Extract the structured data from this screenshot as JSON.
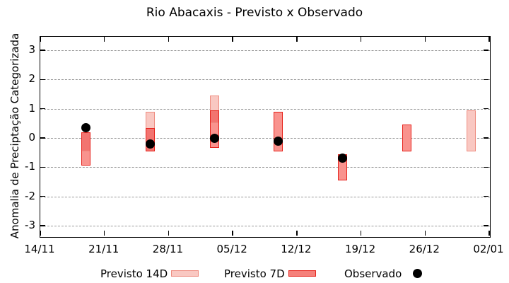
{
  "title": "Rio Abacaxis - Previsto x Observado",
  "y_axis": {
    "label": "Anomalia de Preciptação Categorizada",
    "ticks": [
      3,
      2,
      1,
      0,
      -1,
      -2,
      -3
    ],
    "range": [
      -3.4,
      3.4
    ]
  },
  "x_axis": {
    "tick_labels": [
      "14/11",
      "21/11",
      "28/11",
      "05/12",
      "12/12",
      "19/12",
      "26/12",
      "02/01"
    ],
    "tick_days": [
      0,
      7,
      14,
      21,
      28,
      35,
      42,
      49
    ],
    "span_days": 49
  },
  "legend": {
    "items": [
      {
        "label": "Previsto 14D",
        "type": "box",
        "fill": "#f9c8c2",
        "border": "#ee8c80"
      },
      {
        "label": "Previsto 7D",
        "type": "box",
        "fill": "#f5807a",
        "border": "#e6231c"
      },
      {
        "label": "Observado",
        "type": "dot",
        "fill": "#000000"
      }
    ]
  },
  "colors": {
    "p14_fill": "#f9c8c2",
    "p14_border": "#ee8c80",
    "p7_fill": "#f9938e",
    "p7_border": "#e6231c",
    "overlap_fill": "#f27470",
    "observed": "#000000",
    "grid": "#999999",
    "axis": "#000000"
  },
  "chart_data": {
    "type": "bar",
    "subtype": "ranged-forecast-bars-with-observed-points",
    "title": "Rio Abacaxis - Previsto x Observado",
    "xlabel": "",
    "ylabel": "Anomalia de Preciptação Categorizada",
    "ylim": [
      -3.4,
      3.4
    ],
    "grid": "horizontal-dashed",
    "legend_position": "bottom",
    "dates": [
      "19/11",
      "26/11",
      "03/12",
      "10/12",
      "17/12",
      "24/12",
      "31/12"
    ],
    "day_offsets": [
      5,
      12,
      19,
      26,
      33,
      40,
      47
    ],
    "series": [
      {
        "name": "Previsto 14D",
        "kind": "range",
        "ranges": [
          [
            -0.45,
            0.2
          ],
          [
            -0.45,
            0.9
          ],
          [
            0.5,
            1.45
          ],
          null,
          null,
          null,
          [
            -0.45,
            0.95
          ]
        ]
      },
      {
        "name": "Previsto 7D",
        "kind": "range",
        "ranges": [
          [
            -0.95,
            0.2
          ],
          [
            -0.45,
            0.35
          ],
          [
            -0.35,
            0.95
          ],
          [
            -0.45,
            0.9
          ],
          [
            -1.45,
            -0.55
          ],
          [
            -0.45,
            0.45
          ],
          null
        ]
      },
      {
        "name": "Observado",
        "kind": "point",
        "values": [
          0.35,
          -0.2,
          0.0,
          -0.1,
          -0.7,
          null,
          null
        ]
      }
    ]
  }
}
